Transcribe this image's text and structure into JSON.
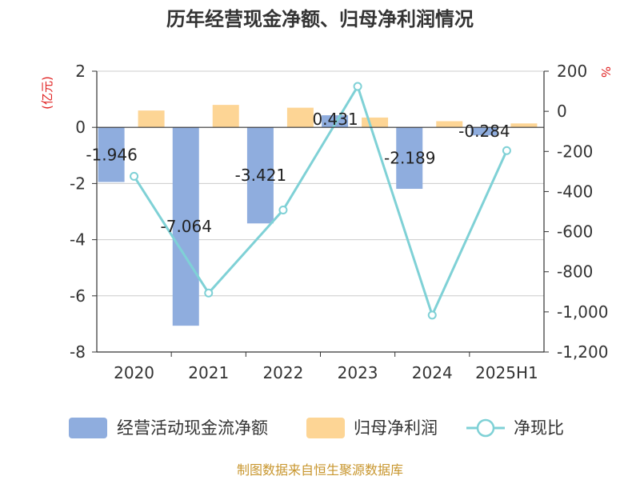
{
  "chart_data": {
    "type": "bar",
    "title": "历年经营现金净额、归母净利润情况",
    "categories": [
      "2020",
      "2021",
      "2022",
      "2023",
      "2024",
      "2025H1"
    ],
    "series": [
      {
        "name": "经营活动现金流净额",
        "type": "bar",
        "axis": "left",
        "values": [
          -1.946,
          -7.064,
          -3.421,
          0.431,
          -2.189,
          -0.284
        ],
        "labels": [
          "-1.946",
          "-7.064",
          "-3.421",
          "0.431",
          "-2.189",
          "-0.284"
        ]
      },
      {
        "name": "归母净利润",
        "type": "bar",
        "axis": "left",
        "values": [
          0.6,
          0.8,
          0.7,
          0.35,
          0.22,
          0.14
        ]
      },
      {
        "name": "净现比",
        "type": "line",
        "axis": "right",
        "values": [
          -324,
          -906,
          -492,
          124,
          -1016,
          -196
        ]
      }
    ],
    "ylabel_left": "(亿元)",
    "ylabel_right": "%",
    "ylim_left": [
      -8,
      2
    ],
    "yticks_left": [
      "2",
      "0",
      "-2",
      "-4",
      "-6",
      "-8"
    ],
    "ylim_right": [
      -1200,
      200
    ],
    "yticks_right": [
      "200",
      "0",
      "-200",
      "-400",
      "-600",
      "-800",
      "-1,000",
      "-1,200"
    ],
    "legend_position": "bottom",
    "grid": "horizontal",
    "colors": {
      "cashflow": "#8fadde",
      "profit": "#fdd595",
      "ratio": "#7fd1d6",
      "title": "#333333",
      "axis_unit": "#e02020",
      "source": "#c8962e"
    }
  },
  "footer": {
    "source": "制图数据来自恒生聚源数据库"
  }
}
